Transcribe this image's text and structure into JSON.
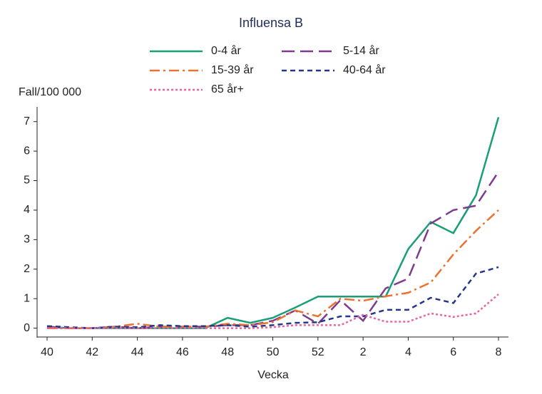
{
  "chart_data": {
    "type": "line",
    "title": "Influensa B",
    "y_label": "Fall/100 000",
    "x_label": "Vecka",
    "categories": [
      "40",
      null,
      "42",
      null,
      "44",
      null,
      "46",
      null,
      "48",
      null,
      "50",
      null,
      "52",
      null,
      "2",
      null,
      "4",
      null,
      "6",
      null,
      "8"
    ],
    "ylim": [
      -0.3,
      7.5
    ],
    "yticks": [
      0,
      1,
      2,
      3,
      4,
      5,
      6,
      7
    ],
    "series": [
      {
        "name": "0-4 år",
        "color": "#1a9e77",
        "values": [
          0.05,
          0,
          0,
          0,
          0,
          0,
          0,
          0,
          0.35,
          0.18,
          0.35,
          0.7,
          1.07,
          1.07,
          1.07,
          1.07,
          2.68,
          3.6,
          3.22,
          4.5,
          7.15
        ]
      },
      {
        "name": "5-14 år",
        "color": "#7d3a8e",
        "dash": "18 8",
        "values": [
          0.05,
          0,
          0,
          0.05,
          0,
          0.05,
          0.05,
          0.05,
          0.1,
          0.1,
          0.25,
          0.6,
          0.15,
          0.95,
          0.25,
          1.35,
          1.68,
          3.55,
          4.0,
          4.15,
          5.3
        ]
      },
      {
        "name": "15-39 år",
        "color": "#ec7230",
        "dash": "14 5 3 5",
        "values": [
          0,
          0,
          0,
          0.05,
          0.15,
          0.05,
          0.05,
          0.05,
          0.15,
          0.1,
          0.2,
          0.6,
          0.4,
          1.0,
          0.93,
          1.08,
          1.2,
          1.55,
          2.5,
          3.3,
          4.0
        ]
      },
      {
        "name": "40-64 år",
        "color": "#24378c",
        "dash": "7 5",
        "values": [
          0.07,
          0.03,
          0,
          0.05,
          0.03,
          0.1,
          0.07,
          0.07,
          0.1,
          0.05,
          0.1,
          0.18,
          0.2,
          0.4,
          0.4,
          0.62,
          0.62,
          1.03,
          0.85,
          1.85,
          2.07
        ]
      },
      {
        "name": "65 år+",
        "color": "#e7649e",
        "dash": "3 3",
        "values": [
          0,
          0,
          0,
          0,
          0,
          0,
          0,
          0,
          0,
          0,
          0.03,
          0.1,
          0.1,
          0.1,
          0.45,
          0.22,
          0.22,
          0.5,
          0.38,
          0.5,
          1.15
        ]
      }
    ]
  }
}
